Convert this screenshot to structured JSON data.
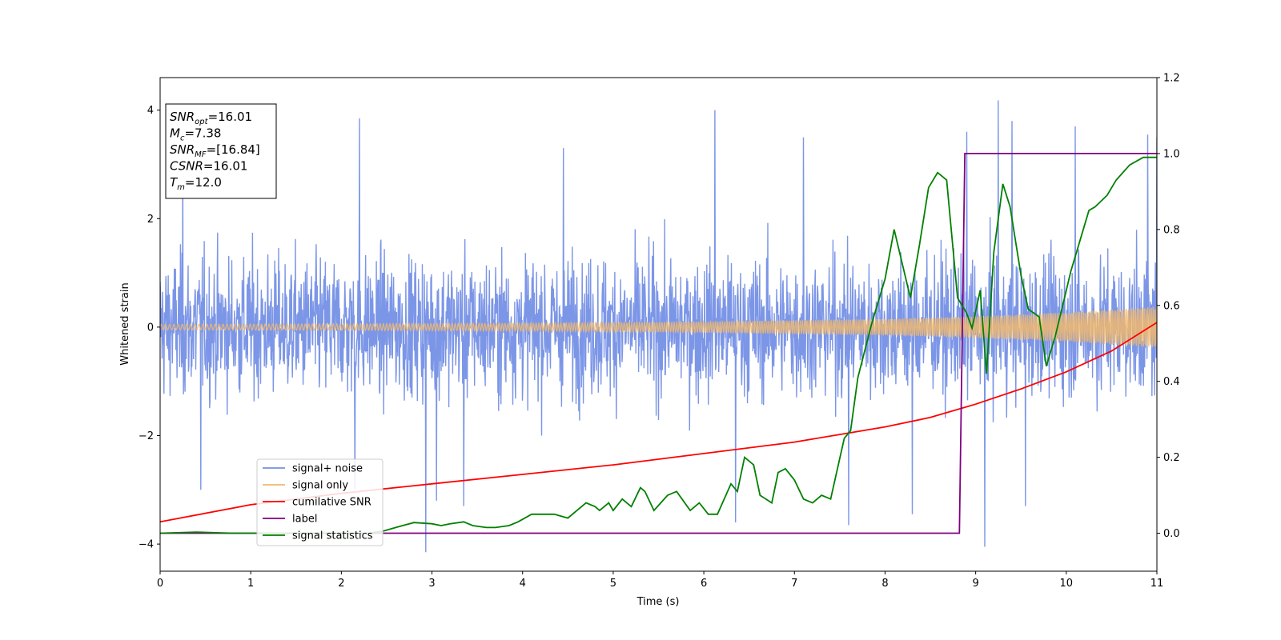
{
  "chart_data": {
    "type": "line",
    "xlabel": "Time (s)",
    "ylabel": "Whitened strain",
    "xlim": [
      0,
      11
    ],
    "ylim": [
      -4.5,
      4.6
    ],
    "y2lim": [
      -0.1,
      1.2
    ],
    "x_ticks": [
      "0",
      "1",
      "2",
      "3",
      "4",
      "5",
      "6",
      "7",
      "8",
      "9",
      "10",
      "11"
    ],
    "y_ticks": [
      "−4",
      "−2",
      "0",
      "2",
      "4"
    ],
    "y2_ticks": [
      "0.0",
      "0.2",
      "0.4",
      "0.6",
      "0.8",
      "1.0",
      "1.2"
    ],
    "annotation": {
      "lines": [
        {
          "sym": "SNR",
          "sub": "opt",
          "val": "=16.01"
        },
        {
          "sym": "M",
          "sub": "c",
          "val": "=7.38"
        },
        {
          "sym": "SNR",
          "sub": "MF",
          "val": "=[16.84]"
        },
        {
          "sym": "CSNR",
          "sub": "",
          "val": "=16.01"
        },
        {
          "sym": "T",
          "sub": "m",
          "val": "=12.0"
        }
      ]
    },
    "legend_position": "lower-left",
    "series": [
      {
        "name": "signal+ noise",
        "color": "#7590e6",
        "axis": "left",
        "description_amplitude": "whitened noise, approx. ±2.5 with spikes to ±4.2",
        "spikes": [
          [
            0.25,
            3.3
          ],
          [
            0.45,
            -3.0
          ],
          [
            2.2,
            3.85
          ],
          [
            2.15,
            -3.0
          ],
          [
            2.93,
            -4.15
          ],
          [
            3.05,
            -3.2
          ],
          [
            3.35,
            -3.3
          ],
          [
            4.45,
            3.3
          ],
          [
            6.12,
            4.0
          ],
          [
            6.35,
            -3.6
          ],
          [
            7.1,
            3.5
          ],
          [
            7.6,
            -3.65
          ],
          [
            8.3,
            -3.45
          ],
          [
            8.9,
            3.6
          ],
          [
            9.1,
            -4.05
          ],
          [
            9.25,
            4.18
          ],
          [
            9.4,
            3.8
          ],
          [
            9.55,
            -3.3
          ],
          [
            10.1,
            3.7
          ],
          [
            10.9,
            3.55
          ],
          [
            11.0,
            3.5
          ]
        ]
      },
      {
        "name": "signal only",
        "color": "#f0b96e",
        "axis": "left",
        "amplitude_envelope": [
          [
            0,
            0.05
          ],
          [
            4,
            0.07
          ],
          [
            6,
            0.1
          ],
          [
            8,
            0.15
          ],
          [
            9,
            0.2
          ],
          [
            10,
            0.27
          ],
          [
            11,
            0.38
          ]
        ]
      },
      {
        "name": "cumilative SNR",
        "color": "#ff0000",
        "axis": "right",
        "x": [
          0,
          1,
          2,
          3,
          4,
          5,
          6,
          7,
          7.5,
          8,
          8.5,
          9,
          9.5,
          10,
          10.5,
          11
        ],
        "y": [
          0.03,
          0.075,
          0.105,
          0.13,
          0.155,
          0.18,
          0.21,
          0.24,
          0.26,
          0.28,
          0.305,
          0.34,
          0.38,
          0.425,
          0.48,
          0.555
        ]
      },
      {
        "name": "label",
        "color": "#800080",
        "axis": "right",
        "x": [
          0,
          8.82,
          8.88,
          11
        ],
        "y": [
          0.0,
          0.0,
          1.0,
          1.0
        ]
      },
      {
        "name": "signal statistics",
        "color": "#008000",
        "axis": "right",
        "x": [
          0,
          0.4,
          0.8,
          1.2,
          1.6,
          2.0,
          2.3,
          2.45,
          2.6,
          2.8,
          3.0,
          3.1,
          3.2,
          3.35,
          3.45,
          3.6,
          3.7,
          3.85,
          3.95,
          4.1,
          4.25,
          4.35,
          4.5,
          4.6,
          4.7,
          4.8,
          4.85,
          4.95,
          5.0,
          5.1,
          5.2,
          5.3,
          5.35,
          5.45,
          5.6,
          5.7,
          5.85,
          5.95,
          6.05,
          6.15,
          6.3,
          6.37,
          6.45,
          6.55,
          6.62,
          6.75,
          6.82,
          6.9,
          7.0,
          7.1,
          7.2,
          7.3,
          7.4,
          7.55,
          7.62,
          7.7,
          7.85,
          8.0,
          8.1,
          8.18,
          8.28,
          8.38,
          8.48,
          8.58,
          8.68,
          8.8,
          8.9,
          8.96,
          9.05,
          9.12,
          9.2,
          9.3,
          9.38,
          9.5,
          9.58,
          9.7,
          9.78,
          9.88,
          9.98,
          10.05,
          10.15,
          10.25,
          10.32,
          10.45,
          10.55,
          10.7,
          10.85,
          10.98,
          11.0
        ],
        "y": [
          0.0,
          0.003,
          0.0,
          0.0,
          0.0,
          0.0,
          0.0,
          0.005,
          0.015,
          0.028,
          0.025,
          0.02,
          0.025,
          0.03,
          0.02,
          0.015,
          0.015,
          0.02,
          0.03,
          0.05,
          0.05,
          0.05,
          0.04,
          0.06,
          0.08,
          0.07,
          0.06,
          0.08,
          0.06,
          0.09,
          0.07,
          0.12,
          0.11,
          0.06,
          0.1,
          0.11,
          0.06,
          0.08,
          0.05,
          0.05,
          0.13,
          0.11,
          0.2,
          0.18,
          0.1,
          0.08,
          0.16,
          0.17,
          0.14,
          0.09,
          0.08,
          0.1,
          0.09,
          0.25,
          0.27,
          0.41,
          0.55,
          0.67,
          0.8,
          0.72,
          0.62,
          0.76,
          0.91,
          0.95,
          0.93,
          0.62,
          0.58,
          0.54,
          0.64,
          0.42,
          0.74,
          0.92,
          0.86,
          0.68,
          0.59,
          0.57,
          0.44,
          0.52,
          0.62,
          0.69,
          0.77,
          0.85,
          0.86,
          0.89,
          0.93,
          0.97,
          0.99,
          0.99,
          0.99
        ]
      }
    ]
  }
}
